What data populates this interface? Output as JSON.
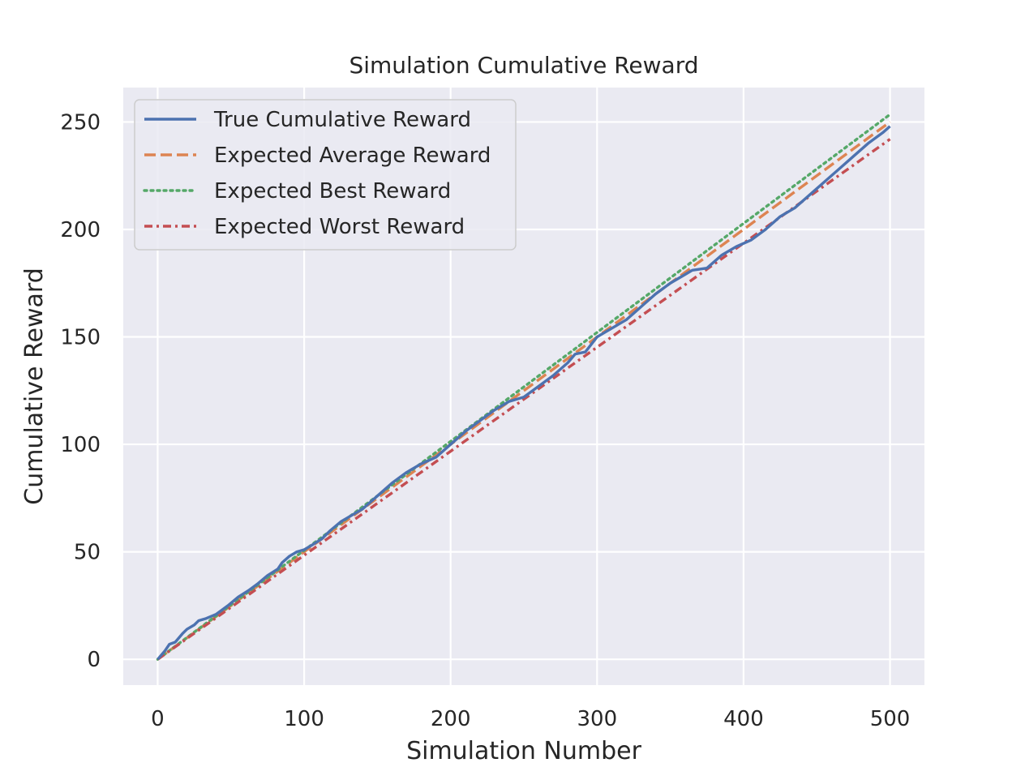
{
  "chart_data": {
    "type": "line",
    "title": "Simulation Cumulative Reward",
    "xlabel": "Simulation Number",
    "ylabel": "Cumulative Reward",
    "xlim": [
      -23.5,
      523.5
    ],
    "ylim": [
      -12,
      266
    ],
    "xticks": [
      0,
      100,
      200,
      300,
      400,
      500
    ],
    "yticks": [
      0,
      50,
      100,
      150,
      200,
      250
    ],
    "grid": true,
    "legend_position": "top-left",
    "colors": {
      "background": "#eaeaf2",
      "grid": "#ffffff",
      "true": "#4c72b0",
      "average": "#dd8452",
      "best": "#55a868",
      "worst": "#c44e52"
    },
    "series": [
      {
        "name": "True Cumulative Reward",
        "style": "solid",
        "color": "#4c72b0",
        "x": [
          0,
          5,
          8,
          12,
          17,
          20,
          25,
          28,
          33,
          40,
          48,
          55,
          62,
          68,
          75,
          82,
          85,
          90,
          95,
          100,
          105,
          112,
          118,
          125,
          130,
          140,
          150,
          160,
          170,
          180,
          190,
          200,
          210,
          220,
          230,
          240,
          250,
          260,
          270,
          280,
          285,
          292,
          300,
          310,
          320,
          330,
          340,
          350,
          360,
          365,
          375,
          385,
          395,
          405,
          415,
          425,
          435,
          445,
          455,
          465,
          475,
          485,
          495,
          500
        ],
        "y": [
          0,
          4,
          7,
          8,
          12,
          14,
          16,
          18,
          19,
          21,
          25,
          29,
          32,
          35,
          39,
          42,
          45,
          48,
          50,
          51,
          53,
          56,
          60,
          64,
          66,
          70,
          76,
          82,
          87,
          91,
          94,
          100,
          106,
          111,
          116,
          120,
          122,
          127,
          132,
          138,
          142,
          143,
          150,
          154,
          158,
          164,
          170,
          175,
          179,
          181,
          182,
          188,
          192,
          195,
          200,
          206,
          210,
          216,
          222,
          228,
          234,
          240,
          245,
          248
        ]
      },
      {
        "name": "Expected Average Reward",
        "style": "dashed",
        "color": "#dd8452",
        "x": [
          0,
          500
        ],
        "y": [
          0,
          250
        ]
      },
      {
        "name": "Expected Best Reward",
        "style": "dotted",
        "color": "#55a868",
        "x": [
          0,
          500
        ],
        "y": [
          0,
          253.5
        ]
      },
      {
        "name": "Expected Worst Reward",
        "style": "dashdot",
        "color": "#c44e52",
        "x": [
          0,
          500
        ],
        "y": [
          0,
          242
        ]
      }
    ]
  }
}
